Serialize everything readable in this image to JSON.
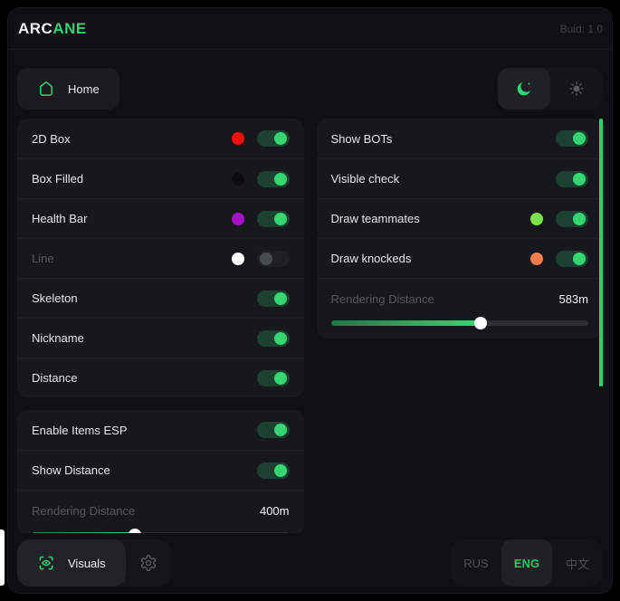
{
  "brand": {
    "part1": "ARC",
    "part2": "ANE"
  },
  "header": {
    "build": "Buid: 1.0"
  },
  "nav": {
    "home": "Home"
  },
  "esp_panel": {
    "rows": [
      {
        "label": "2D Box",
        "swatch": "#f60d0d",
        "state": "on"
      },
      {
        "label": "Box Filled",
        "swatch": "#0c0d11",
        "state": "on"
      },
      {
        "label": "Health Bar",
        "swatch": "#a312c4",
        "state": "on"
      },
      {
        "label": "Line",
        "swatch": "#ffffff",
        "state": "off",
        "muted": "true"
      },
      {
        "label": "Skeleton",
        "state": "on"
      },
      {
        "label": "Nickname",
        "state": "on"
      },
      {
        "label": "Distance",
        "state": "on"
      }
    ]
  },
  "bots_panel": {
    "rows": [
      {
        "label": "Show BOTs",
        "state": "on"
      },
      {
        "label": "Visible check",
        "state": "on"
      },
      {
        "label": "Draw teammates",
        "swatch": "#7fe24a",
        "state": "on"
      },
      {
        "label": "Draw knockeds",
        "swatch": "#f37d4f",
        "state": "on"
      }
    ],
    "slider": {
      "label": "Rendering Distance",
      "value": "583m",
      "percent": 58
    }
  },
  "items_panel": {
    "rows": [
      {
        "label": "Enable Items ESP",
        "state": "on"
      },
      {
        "label": "Show Distance",
        "state": "on"
      }
    ],
    "slider": {
      "label": "Rendering Distance",
      "value": "400m",
      "percent": 40
    }
  },
  "footer": {
    "visuals": "Visuals",
    "languages": [
      {
        "label": "RUS"
      },
      {
        "label": "ENG",
        "active": "true"
      },
      {
        "label": "中文"
      }
    ]
  },
  "colors": {
    "accent_green": "#2fd573",
    "toggle_track_on": "#1d4130",
    "toggle_knob_on": "#35d572",
    "scrollbar_green": "#2fcf71",
    "lang_active_green": "#26c566",
    "slider_fill_start": "#1b7a46",
    "slider_fill_end": "#38d674"
  }
}
